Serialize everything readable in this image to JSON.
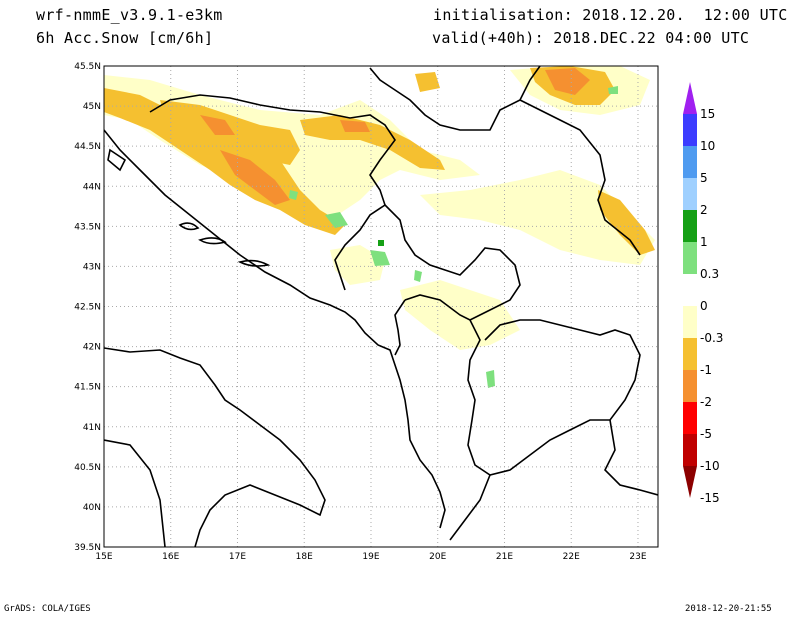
{
  "header": {
    "model": "wrf-nmmE_v3.9.1-e3km",
    "field": "6h Acc.Snow [cm/6h]",
    "init": "initialisation: 2018.12.20.  12:00 UTC",
    "valid": "valid(+40h): 2018.DEC.22 04:00 UTC"
  },
  "axes": {
    "lon_ticks": [
      "15E",
      "16E",
      "17E",
      "18E",
      "19E",
      "20E",
      "21E",
      "22E",
      "23E"
    ],
    "lat_ticks": [
      "45.5N",
      "45N",
      "44.5N",
      "44N",
      "43.5N",
      "43N",
      "42.5N",
      "42N",
      "41.5N",
      "41N",
      "40.5N",
      "40N",
      "39.5N"
    ],
    "lon_range": [
      15,
      23.3
    ],
    "lat_range": [
      39.5,
      45.5
    ],
    "grid": true
  },
  "colorbar": {
    "labels": [
      "15",
      "10",
      "5",
      "2",
      "1",
      "0.3",
      "0",
      "-0.3",
      "-1",
      "-2",
      "-5",
      "-10",
      "-15"
    ],
    "colors": [
      "#a020f0",
      "#3c3cff",
      "#4f9bf0",
      "#9fd0ff",
      "#15a015",
      "#7ee07e",
      "#ffffff",
      "#ffffc8",
      "#f5c030",
      "#f59030",
      "#ff0000",
      "#c00000",
      "#8c0000"
    ]
  },
  "footer": {
    "left": "GrADS: COLA/IGES",
    "right": "2018-12-20-21:55"
  }
}
